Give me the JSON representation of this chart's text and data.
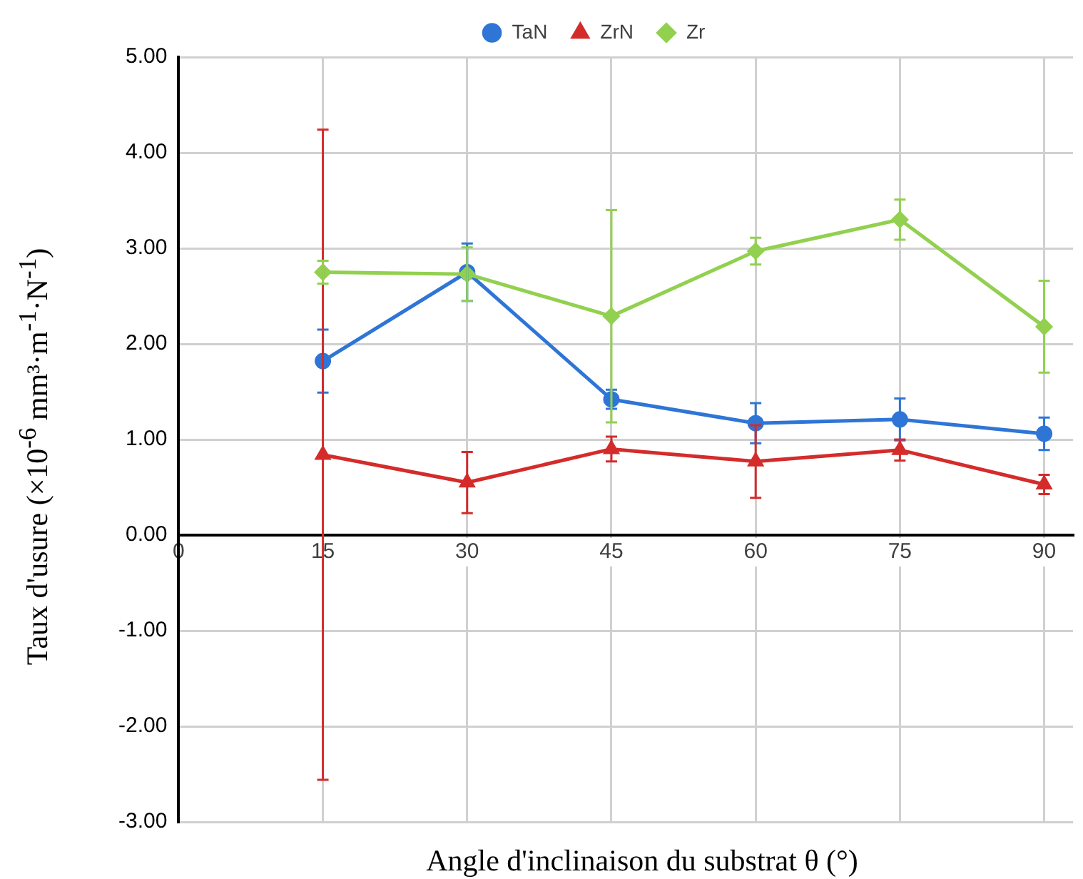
{
  "chart_data": {
    "type": "line",
    "xlabel": "Angle d'inclinaison du substrat θ (°)",
    "ylabel": "Taux d'usure (×10$^{-6}$ mm³·m$^{-1}$·N$^{-1}$)",
    "x": [
      15,
      30,
      45,
      60,
      75,
      90
    ],
    "series": [
      {
        "name": "TaN",
        "color": "#2e75d6",
        "marker": "circle",
        "values": [
          1.82,
          2.75,
          1.42,
          1.17,
          1.21,
          1.06
        ],
        "errors": [
          0.33,
          0.3,
          0.1,
          0.21,
          0.22,
          0.17
        ]
      },
      {
        "name": "ZrN",
        "color": "#d42b2b",
        "marker": "triangle",
        "values": [
          0.84,
          0.55,
          0.9,
          0.77,
          0.89,
          0.53
        ],
        "errors": [
          3.4,
          0.32,
          0.13,
          0.38,
          0.11,
          0.1
        ]
      },
      {
        "name": "Zr",
        "color": "#92d050",
        "marker": "diamond",
        "values": [
          2.75,
          2.73,
          2.29,
          2.97,
          3.3,
          2.18
        ],
        "errors": [
          0.12,
          0.28,
          1.11,
          0.14,
          0.21,
          0.48
        ]
      }
    ],
    "xlim": [
      0,
      93
    ],
    "xticks": [
      0,
      15,
      30,
      45,
      60,
      75,
      90
    ],
    "ylim": [
      -3,
      5
    ],
    "yticks": [
      {
        "value": -3,
        "label": "-3.00"
      },
      {
        "value": -2,
        "label": "-2.00"
      },
      {
        "value": -1,
        "label": "-1.00"
      },
      {
        "value": 0,
        "label": "0.00"
      },
      {
        "value": 1,
        "label": "1.00"
      },
      {
        "value": 2,
        "label": "2.00"
      },
      {
        "value": 3,
        "label": "3.00"
      },
      {
        "value": 4,
        "label": "4.00"
      },
      {
        "value": 5,
        "label": "5.00"
      }
    ],
    "grid": true,
    "legend": "top",
    "line_style": "solid"
  }
}
